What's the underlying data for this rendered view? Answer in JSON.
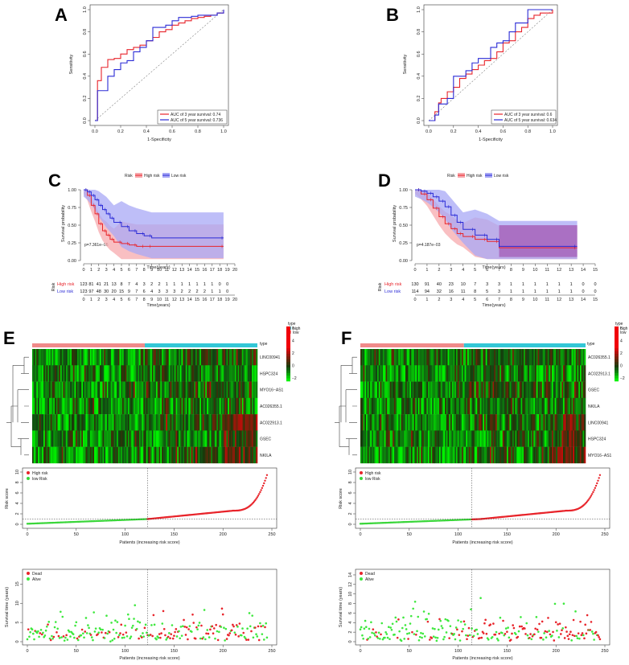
{
  "panels": {
    "A": {
      "letter": "A",
      "xlabel": "1-Specificity",
      "ylabel": "Sensitivity",
      "ticks": [
        "0.0",
        "0.2",
        "0.4",
        "0.6",
        "0.8",
        "1.0"
      ],
      "legend": [
        {
          "label": "AUC of 3 year survival: 0.74",
          "color": "#e8242b"
        },
        {
          "label": "AUC of 5 year survival: 0.736",
          "color": "#2b2bd6"
        }
      ]
    },
    "B": {
      "letter": "B",
      "xlabel": "1-Specificity",
      "ylabel": "Sensitivity",
      "ticks": [
        "0.0",
        "0.2",
        "0.4",
        "0.6",
        "0.8",
        "1.0"
      ],
      "legend": [
        {
          "label": "AUC of 3 year survival: 0.6",
          "color": "#e8242b"
        },
        {
          "label": "AUC of 5 year survival: 0.634",
          "color": "#2b2bd6"
        }
      ]
    },
    "C": {
      "letter": "C",
      "legend_title": "Risk",
      "legend_high": "High risk",
      "legend_low": "Low risk",
      "ylabel": "Survival probability",
      "xlabel": "Time(years)",
      "pvalue": "p=7.361e−05",
      "yticks": [
        "0.00",
        "0.25",
        "0.50",
        "0.75",
        "1.00"
      ],
      "table_ylabel": "Risk",
      "table_high_label": "High risk",
      "table_low_label": "Low risk",
      "table_high": [
        "123",
        "81",
        "41",
        "21",
        "13",
        "8",
        "7",
        "4",
        "3",
        "2",
        "2",
        "1",
        "1",
        "1",
        "1",
        "1",
        "1",
        "1",
        "0",
        "0"
      ],
      "table_low": [
        "123",
        "97",
        "48",
        "30",
        "20",
        "15",
        "9",
        "7",
        "6",
        "4",
        "3",
        "3",
        "3",
        "2",
        "2",
        "2",
        "2",
        "1",
        "1",
        "0"
      ],
      "table_xlabel": "Time(years)"
    },
    "D": {
      "letter": "D",
      "legend_title": "Risk",
      "legend_high": "High risk",
      "legend_low": "Low risk",
      "ylabel": "Survival probability",
      "xlabel": "Time(years)",
      "pvalue": "p=4.187e−03",
      "yticks": [
        "0.00",
        "0.25",
        "0.50",
        "0.75",
        "1.00"
      ],
      "table_ylabel": "Risk",
      "table_high_label": "High risk",
      "table_low_label": "Low risk",
      "table_high": [
        "130",
        "91",
        "40",
        "23",
        "10",
        "7",
        "3",
        "3",
        "1",
        "1",
        "1",
        "1",
        "1",
        "1",
        "0",
        "0"
      ],
      "table_low": [
        "114",
        "94",
        "32",
        "16",
        "11",
        "8",
        "5",
        "3",
        "1",
        "1",
        "1",
        "1",
        "1",
        "1",
        "0",
        "0"
      ],
      "table_xlabel": "Time(years)"
    },
    "E": {
      "letter": "E",
      "genes": [
        "LINC00941",
        "HSPC324",
        "MYO16−AS1",
        "AC026355.1",
        "AC022913.1",
        "GSEC",
        "NKILA"
      ],
      "type_label": "type",
      "legend_title": "type",
      "legend_high": "high",
      "legend_low": "low",
      "color_ticks": [
        "6",
        "4",
        "2",
        "0",
        "−2"
      ],
      "risk_legend_high": "High risk",
      "risk_legend_low": "low Risk",
      "risk_ylabel": "Risk score",
      "risk_xlabel": "Patients (increasing risk score)",
      "risk_yticks": [
        "0",
        "2",
        "4",
        "6",
        "8",
        "10"
      ],
      "xticks": [
        "0",
        "50",
        "100",
        "150",
        "200",
        "250"
      ],
      "surv_legend_dead": "Dead",
      "surv_legend_alive": "Alive",
      "surv_ylabel": "Survival time (years)",
      "surv_xlabel": "Patients (increasing risk score)",
      "surv_yticks": [
        "0",
        "5",
        "10",
        "15"
      ]
    },
    "F": {
      "letter": "F",
      "genes": [
        "AC026355.1",
        "AC022913.1",
        "GSEC",
        "NKILA",
        "LINC00941",
        "HSPC324",
        "MYO16−AS1"
      ],
      "type_label": "type",
      "legend_title": "type",
      "legend_high": "high",
      "legend_low": "low",
      "color_ticks": [
        "6",
        "4",
        "2",
        "0",
        "−2"
      ],
      "risk_legend_high": "High risk",
      "risk_legend_low": "low Risk",
      "risk_ylabel": "Risk score",
      "risk_xlabel": "Patients (increasing risk score)",
      "risk_yticks": [
        "0",
        "2",
        "4",
        "6",
        "8",
        "10"
      ],
      "xticks": [
        "0",
        "50",
        "100",
        "150",
        "200",
        "250"
      ],
      "surv_legend_dead": "Dead",
      "surv_legend_alive": "Alive",
      "surv_ylabel": "Survival time (years)",
      "surv_xlabel": "Patients (increasing risk score)",
      "surv_yticks": [
        "0",
        "2",
        "4",
        "6",
        "8",
        "10",
        "12",
        "14"
      ]
    }
  },
  "colors": {
    "red": "#e8242b",
    "blue": "#2b2bd6",
    "pinkband": "#f7a9ad",
    "blueband": "#a8a8f5",
    "purpleband": "#a45bb5",
    "green": "#3ad63a",
    "dead": "#e8242b",
    "alive": "#3ee83e",
    "bar_high": "#f08a8a",
    "bar_low": "#33c7d6"
  },
  "chart_data": [
    {
      "type": "line",
      "title": "A",
      "xlabel": "1-Specificity",
      "ylabel": "Sensitivity",
      "xlim": [
        0,
        1
      ],
      "ylim": [
        0,
        1
      ],
      "series": [
        {
          "name": "AUC of 3 year survival: 0.74",
          "x": [
            0,
            0.02,
            0.02,
            0.05,
            0.05,
            0.1,
            0.1,
            0.15,
            0.2,
            0.25,
            0.3,
            0.35,
            0.4,
            0.45,
            0.5,
            0.55,
            0.6,
            0.65,
            0.7,
            0.75,
            0.8,
            0.85,
            0.9,
            0.95,
            1.0
          ],
          "y": [
            0,
            0.2,
            0.36,
            0.42,
            0.48,
            0.52,
            0.55,
            0.56,
            0.6,
            0.64,
            0.66,
            0.68,
            0.72,
            0.75,
            0.8,
            0.82,
            0.86,
            0.88,
            0.9,
            0.92,
            0.93,
            0.94,
            0.95,
            0.97,
            1.0
          ]
        },
        {
          "name": "AUC of 5 year survival: 0.736",
          "x": [
            0,
            0.02,
            0.02,
            0.1,
            0.1,
            0.15,
            0.2,
            0.25,
            0.3,
            0.35,
            0.4,
            0.45,
            0.5,
            0.55,
            0.6,
            0.65,
            0.7,
            0.75,
            0.8,
            0.9,
            0.95,
            1.0
          ],
          "y": [
            0,
            0.1,
            0.27,
            0.3,
            0.4,
            0.46,
            0.52,
            0.54,
            0.62,
            0.66,
            0.72,
            0.84,
            0.84,
            0.86,
            0.9,
            0.93,
            0.93,
            0.94,
            0.95,
            0.95,
            0.97,
            1.0
          ]
        }
      ]
    },
    {
      "type": "line",
      "title": "B",
      "xlabel": "1-Specificity",
      "ylabel": "Sensitivity",
      "xlim": [
        0,
        1
      ],
      "ylim": [
        0,
        1
      ],
      "series": [
        {
          "name": "AUC of 3 year survival: 0.6",
          "x": [
            0,
            0.05,
            0.08,
            0.1,
            0.15,
            0.2,
            0.25,
            0.3,
            0.35,
            0.4,
            0.45,
            0.5,
            0.55,
            0.6,
            0.65,
            0.7,
            0.75,
            0.8,
            0.85,
            0.9,
            1.0
          ],
          "y": [
            0,
            0.08,
            0.16,
            0.2,
            0.26,
            0.3,
            0.38,
            0.42,
            0.46,
            0.5,
            0.54,
            0.56,
            0.62,
            0.7,
            0.72,
            0.8,
            0.84,
            0.92,
            0.95,
            0.97,
            1.0
          ]
        },
        {
          "name": "AUC of 5 year survival: 0.634",
          "x": [
            0,
            0.05,
            0.08,
            0.12,
            0.15,
            0.2,
            0.25,
            0.3,
            0.35,
            0.4,
            0.45,
            0.5,
            0.55,
            0.6,
            0.65,
            0.7,
            0.75,
            0.8,
            0.85,
            1.0
          ],
          "y": [
            0,
            0.05,
            0.15,
            0.15,
            0.2,
            0.4,
            0.4,
            0.45,
            0.52,
            0.56,
            0.56,
            0.66,
            0.7,
            0.72,
            0.8,
            0.88,
            0.88,
            1.0,
            1.0,
            1.0
          ]
        }
      ]
    },
    {
      "type": "line",
      "title": "C",
      "xlabel": "Time(years)",
      "ylabel": "Survival probability",
      "xlim": [
        0,
        20
      ],
      "ylim": [
        0,
        1
      ],
      "x_ticks": [
        0,
        1,
        2,
        3,
        4,
        5,
        6,
        7,
        8,
        9,
        10,
        11,
        12,
        13,
        14,
        15,
        16,
        17,
        18,
        19,
        20
      ],
      "series": [
        {
          "name": "High risk",
          "x": [
            0,
            0.5,
            1,
            1.5,
            2,
            2.5,
            3,
            3.5,
            4,
            5,
            6,
            7,
            8,
            9,
            18.5
          ],
          "y": [
            1.0,
            0.92,
            0.78,
            0.66,
            0.52,
            0.42,
            0.36,
            0.3,
            0.26,
            0.24,
            0.22,
            0.2,
            0.2,
            0.2,
            0.2
          ]
        },
        {
          "name": "Low risk",
          "x": [
            0,
            0.5,
            1,
            1.5,
            2,
            2.5,
            3,
            3.5,
            4,
            5,
            6,
            7,
            8,
            9,
            18.5
          ],
          "y": [
            1.0,
            0.97,
            0.92,
            0.86,
            0.78,
            0.72,
            0.66,
            0.6,
            0.54,
            0.48,
            0.42,
            0.38,
            0.35,
            0.32,
            0.32
          ]
        }
      ]
    },
    {
      "type": "line",
      "title": "D",
      "xlabel": "Time(years)",
      "ylabel": "Survival probability",
      "xlim": [
        0,
        15
      ],
      "ylim": [
        0,
        1
      ],
      "x_ticks": [
        0,
        1,
        2,
        3,
        4,
        5,
        6,
        7,
        8,
        9,
        10,
        11,
        12,
        13,
        14,
        15
      ],
      "series": [
        {
          "name": "High risk",
          "x": [
            0,
            0.5,
            1,
            1.5,
            2,
            2.5,
            3,
            3.5,
            4,
            5,
            6,
            7,
            13.5
          ],
          "y": [
            1.0,
            0.94,
            0.86,
            0.74,
            0.62,
            0.52,
            0.45,
            0.38,
            0.34,
            0.3,
            0.27,
            0.18,
            0.18
          ]
        },
        {
          "name": "Low risk",
          "x": [
            0,
            0.5,
            1,
            1.5,
            2,
            2.5,
            3,
            3.5,
            4,
            5,
            6,
            7,
            13.5
          ],
          "y": [
            1.0,
            0.98,
            0.95,
            0.9,
            0.84,
            0.76,
            0.64,
            0.54,
            0.44,
            0.36,
            0.3,
            0.2,
            0.2
          ]
        }
      ]
    },
    {
      "type": "scatter",
      "title": "E risk score",
      "xlabel": "Patients (increasing risk score)",
      "ylabel": "Risk score",
      "xlim": [
        0,
        250
      ],
      "ylim": [
        0,
        10
      ],
      "cutoff_patient": 123,
      "cutoff_score": 1.0
    },
    {
      "type": "scatter",
      "title": "F risk score",
      "xlabel": "Patients (increasing risk score)",
      "ylabel": "Risk score",
      "xlim": [
        0,
        250
      ],
      "ylim": [
        0,
        10
      ],
      "cutoff_patient": 114,
      "cutoff_score": 1.0
    }
  ]
}
